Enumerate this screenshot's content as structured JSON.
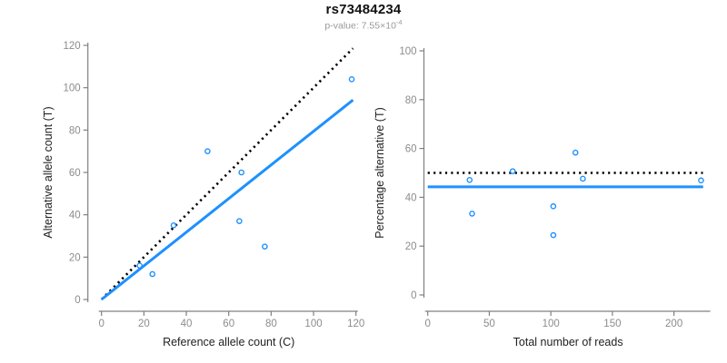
{
  "header": {
    "title": "rs73484234",
    "subtitle_base": "p-value: 7.55×10",
    "subtitle_exponent": "-4"
  },
  "colors": {
    "accent_blue": "#1E90FF",
    "dotted_black": "#000000",
    "axis_gray": "#808080",
    "tick_label_gray": "#8c8c8c",
    "axis_label_dark": "#222222"
  },
  "chart_data": [
    {
      "type": "scatter",
      "name": "allele-counts",
      "title": "",
      "xlabel": "Reference allele count (C)",
      "ylabel": "Alternative allele count (T)",
      "xlim": [
        0,
        120
      ],
      "ylim": [
        0,
        120
      ],
      "xticks": [
        0,
        20,
        40,
        60,
        80,
        100,
        120
      ],
      "yticks": [
        0,
        20,
        40,
        60,
        80,
        100,
        120
      ],
      "grid": false,
      "legend": "none",
      "points": [
        {
          "x": 18,
          "y": 16
        },
        {
          "x": 24,
          "y": 12
        },
        {
          "x": 34,
          "y": 35
        },
        {
          "x": 50,
          "y": 70
        },
        {
          "x": 66,
          "y": 60
        },
        {
          "x": 65,
          "y": 37
        },
        {
          "x": 77,
          "y": 25
        },
        {
          "x": 118,
          "y": 104
        }
      ],
      "lines": [
        {
          "name": "identity-line",
          "style": "dotted",
          "color": "#000000",
          "width": 2.6,
          "x1": 0,
          "y1": 0,
          "x2": 118.6,
          "y2": 118.6,
          "slope": 1.0
        },
        {
          "name": "regression-line",
          "style": "solid",
          "color": "#1E90FF",
          "width": 3,
          "x1": 0,
          "y1": 0,
          "x2": 118.6,
          "y2": 94.2,
          "slope": 0.794
        }
      ]
    },
    {
      "type": "scatter",
      "name": "percentage-vs-coverage",
      "title": "",
      "xlabel": "Total number of reads",
      "ylabel": "Percentage alternative (T)",
      "xlim": [
        0,
        228
      ],
      "ylim": [
        0,
        100
      ],
      "xticks": [
        0,
        50,
        100,
        150,
        200
      ],
      "yticks": [
        0,
        20,
        40,
        60,
        80,
        100
      ],
      "grid": false,
      "legend": "none",
      "points": [
        {
          "x": 34,
          "y": 47.1
        },
        {
          "x": 36,
          "y": 33.3
        },
        {
          "x": 69,
          "y": 50.7
        },
        {
          "x": 120,
          "y": 58.3
        },
        {
          "x": 126,
          "y": 47.6
        },
        {
          "x": 102,
          "y": 36.3
        },
        {
          "x": 102,
          "y": 24.5
        },
        {
          "x": 222,
          "y": 46.9
        }
      ],
      "lines": [
        {
          "name": "expected-50pct-line",
          "style": "dotted",
          "color": "#000000",
          "width": 2.6,
          "x1": 0,
          "y1": 50,
          "x2": 223.5,
          "y2": 50,
          "level": 50
        },
        {
          "name": "mean-percentage-line",
          "style": "solid",
          "color": "#1E90FF",
          "width": 3,
          "x1": 0,
          "y1": 44.3,
          "x2": 223.7,
          "y2": 44.3,
          "level": 44.3
        }
      ]
    }
  ]
}
